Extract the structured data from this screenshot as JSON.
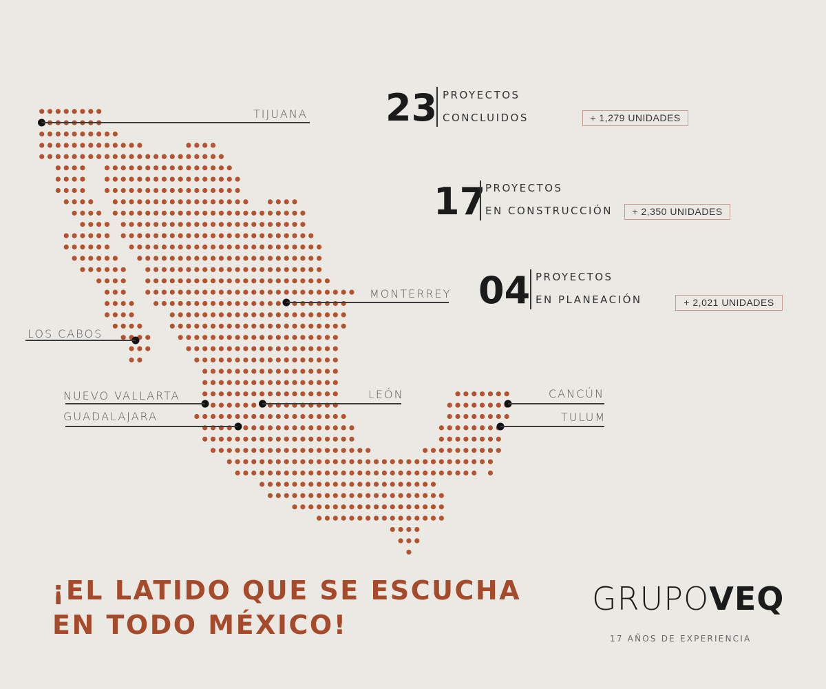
{
  "colors": {
    "background": "#ebe9e4",
    "dots": "#b4532f",
    "markers": "#111111",
    "headline": "#a64a2c",
    "badge_border": "#c79a90"
  },
  "cities": [
    {
      "name": "TIJUANA"
    },
    {
      "name": "LOS CABOS"
    },
    {
      "name": "MONTERREY"
    },
    {
      "name": "NUEVO VALLARTA"
    },
    {
      "name": "LEÓN"
    },
    {
      "name": "GUADALAJARA"
    },
    {
      "name": "CANCÚN"
    },
    {
      "name": "TULUM"
    }
  ],
  "stats": [
    {
      "number": "23",
      "line1": "PROYECTOS",
      "line2": "CONCLUIDOS",
      "units": "+ 1,279 UNIDADES"
    },
    {
      "number": "17",
      "line1": "PROYECTOS",
      "line2": "EN CONSTRUCCIÓN",
      "units": "+ 2,350 UNIDADES"
    },
    {
      "number": "04",
      "line1": "PROYECTOS",
      "line2": "EN PLANEACIÓN",
      "units": "+ 2,021 UNIDADES"
    }
  ],
  "headline": {
    "line1": "¡EL LATIDO QUE SE ESCUCHA",
    "line2": "EN TODO MÉXICO!"
  },
  "brand": {
    "logo_light": "GRUPO",
    "logo_bold": "VEQ",
    "tagline": "17 AÑOS DE EXPERIENCIA"
  }
}
